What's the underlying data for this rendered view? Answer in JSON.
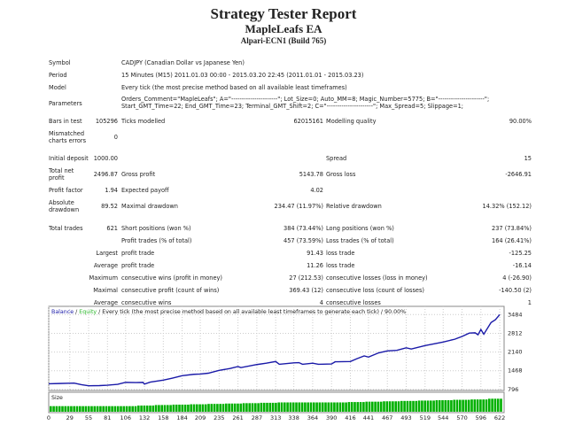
{
  "header": {
    "title": "Strategy Tester Report",
    "ea": "MapleLeafs EA",
    "server": "Alpari-ECN1 (Build 765)"
  },
  "info": {
    "symbol_label": "Symbol",
    "symbol": "CADJPY (Canadian Dollar vs Japanese Yen)",
    "period_label": "Period",
    "period": "15 Minutes (M15) 2011.01.03 00:00 - 2015.03.20 22:45 (2011.01.01 - 2015.03.23)",
    "model_label": "Model",
    "model": "Every tick (the most precise method based on all available least timeframes)",
    "params_label": "Parameters",
    "params_1": "Orders_Comment=\"MapleLeafs\"; A=\"----------------------\"; Lot_Size=0; Auto_MM=8; Magic_Number=5775; B=\"----------------------\";",
    "params_2": "Start_GMT_Time=22; End_GMT_Time=23; Terminal_GMT_Shift=2; C=\"----------------------\"; Max_Spread=5; Slippage=1;",
    "bars_label": "Bars in test",
    "bars": "105296",
    "ticks_label": "Ticks modelled",
    "ticks": "62015161",
    "quality_label": "Modelling quality",
    "quality": "90.00%",
    "mismatch_label_1": "Mismatched",
    "mismatch_label_2": "charts errors",
    "mismatch": "0"
  },
  "results": {
    "deposit_label": "Initial deposit",
    "deposit": "1000.00",
    "spread_label": "Spread",
    "spread": "15",
    "net_label_1": "Total net",
    "net_label_2": "profit",
    "net": "2496.87",
    "gross_profit_label": "Gross profit",
    "gross_profit": "5143.78",
    "gross_loss_label": "Gross loss",
    "gross_loss": "-2646.91",
    "pf_label": "Profit factor",
    "pf": "1.94",
    "ep_label": "Expected payoff",
    "ep": "4.02",
    "abs_label_1": "Absolute",
    "abs_label_2": "drawdown",
    "abs": "89.52",
    "maxdd_label": "Maximal drawdown",
    "maxdd": "234.47 (11.97%)",
    "reldd_label": "Relative drawdown",
    "reldd": "14.32% (152.12)",
    "trades_label": "Total trades",
    "trades": "621",
    "short_label": "Short positions (won %)",
    "short": "384 (73.44%)",
    "long_label": "Long positions (won %)",
    "long": "237 (73.84%)",
    "profit_trades_label": "Profit trades (% of total)",
    "profit_trades": "457 (73.59%)",
    "loss_trades_label": "Loss trades (% of total)",
    "loss_trades": "164 (26.41%)",
    "rows": [
      {
        "pre": "Largest",
        "a": "profit trade",
        "av": "91.43",
        "b": "loss trade",
        "bv": "-125.25"
      },
      {
        "pre": "Average",
        "a": "profit trade",
        "av": "11.26",
        "b": "loss trade",
        "bv": "-16.14"
      },
      {
        "pre": "Maximum",
        "a": "consecutive wins (profit in money)",
        "av": "27 (212.53)",
        "b": "consecutive losses (loss in money)",
        "bv": "4 (-26.90)"
      },
      {
        "pre": "Maximal",
        "a": "consecutive profit (count of wins)",
        "av": "369.43 (12)",
        "b": "consecutive loss (count of losses)",
        "bv": "-140.50 (2)"
      },
      {
        "pre": "Average",
        "a": "consecutive wins",
        "av": "4",
        "b": "consecutive losses",
        "bv": "1"
      }
    ]
  },
  "chart_data": {
    "type": "line",
    "legend_balance": "Balance",
    "legend_sep1": " / ",
    "legend_equity": "Equity",
    "legend_rest": " / Every tick (the most precise method based on all available least timeframes to generate each tick) / 90.00%",
    "size_label": "Size",
    "colors": {
      "balance": "#1a1aa8",
      "equity": "#2db82d",
      "size": "#00b000"
    },
    "ylim": [
      760,
      3780
    ],
    "xlim": [
      0,
      628
    ],
    "y_ticks": [
      796,
      1468,
      2140,
      2812,
      3484
    ],
    "x_ticks": [
      0,
      29,
      55,
      81,
      106,
      132,
      158,
      184,
      209,
      235,
      261,
      287,
      313,
      338,
      364,
      390,
      416,
      441,
      467,
      493,
      519,
      544,
      570,
      596,
      622
    ],
    "x": [
      0,
      15,
      29,
      35,
      45,
      55,
      70,
      81,
      95,
      106,
      120,
      130,
      132,
      140,
      158,
      170,
      184,
      200,
      209,
      220,
      235,
      250,
      261,
      265,
      287,
      300,
      313,
      318,
      338,
      345,
      350,
      364,
      372,
      390,
      395,
      416,
      425,
      435,
      441,
      455,
      467,
      480,
      493,
      500,
      519,
      544,
      560,
      570,
      580,
      588,
      592,
      596,
      600,
      610,
      616,
      622
    ],
    "balance": [
      1000,
      1010,
      1020,
      1025,
      970,
      930,
      935,
      950,
      980,
      1050,
      1045,
      1050,
      990,
      1060,
      1130,
      1200,
      1290,
      1340,
      1350,
      1380,
      1480,
      1550,
      1620,
      1580,
      1690,
      1740,
      1800,
      1700,
      1750,
      1760,
      1700,
      1740,
      1700,
      1710,
      1790,
      1800,
      1900,
      2000,
      1960,
      2110,
      2180,
      2200,
      2290,
      2250,
      2370,
      2500,
      2600,
      2700,
      2820,
      2830,
      2760,
      2950,
      2780,
      3200,
      3300,
      3484
    ],
    "size_levels": [
      0.3,
      0.3,
      0.3,
      0.3,
      0.3,
      0.33,
      0.36,
      0.38,
      0.4,
      0.42,
      0.44,
      0.46,
      0.48,
      0.5,
      0.5,
      0.5,
      0.5,
      0.52,
      0.54,
      0.56,
      0.58,
      0.6,
      0.62,
      0.64,
      0.66,
      0.7
    ]
  }
}
